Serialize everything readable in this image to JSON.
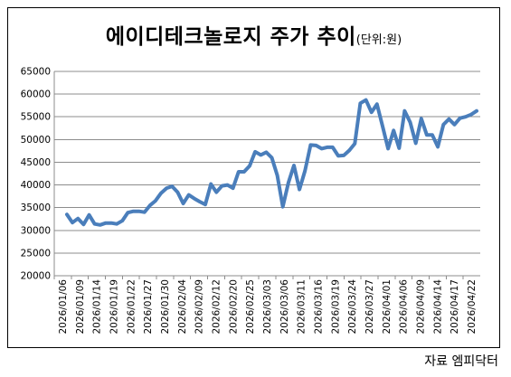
{
  "chart_data": {
    "type": "line",
    "title": "에이디테크놀로지 주가 추이",
    "unit_note": "(단위:원)",
    "source": "자료 엠피닥터",
    "xlabel": "",
    "ylabel": "",
    "ylim": [
      20000,
      65000
    ],
    "yticks": [
      20000,
      25000,
      30000,
      35000,
      40000,
      45000,
      50000,
      55000,
      60000,
      65000
    ],
    "grid": "horizontal",
    "legend": "none",
    "line_color": "#4a7ebb",
    "x_tick_labels": [
      "2026/01/06",
      "2026/01/09",
      "2026/01/14",
      "2026/01/19",
      "2026/01/22",
      "2026/01/27",
      "2026/01/30",
      "2026/02/04",
      "2026/02/09",
      "2026/02/12",
      "2026/02/20",
      "2026/02/25",
      "2026/03/03",
      "2026/03/06",
      "2026/03/11",
      "2026/03/16",
      "2026/03/19",
      "2026/03/24",
      "2026/03/27",
      "2026/04/01",
      "2026/04/06",
      "2026/04/09",
      "2026/04/14",
      "2026/04/17",
      "2026/04/22"
    ],
    "series": [
      {
        "name": "",
        "values": [
          33500,
          31700,
          32600,
          31300,
          33400,
          31400,
          31200,
          31600,
          31600,
          31400,
          32100,
          33900,
          34200,
          34200,
          34000,
          35500,
          36500,
          38200,
          39300,
          39700,
          38400,
          35900,
          37800,
          37000,
          36300,
          35700,
          40200,
          38400,
          39800,
          40000,
          39300,
          42900,
          42900,
          44200,
          47300,
          46600,
          47200,
          46000,
          42100,
          35200,
          40500,
          44300,
          39000,
          43100,
          48800,
          48700,
          48000,
          48300,
          48300,
          46400,
          46500,
          47600,
          49100,
          58000,
          58700,
          56000,
          57800,
          53000,
          48000,
          52000,
          48100,
          56300,
          53800,
          49200,
          54600,
          51000,
          51000,
          48400,
          53300,
          54500,
          53300,
          54700,
          55000,
          55500,
          56300
        ]
      }
    ]
  }
}
